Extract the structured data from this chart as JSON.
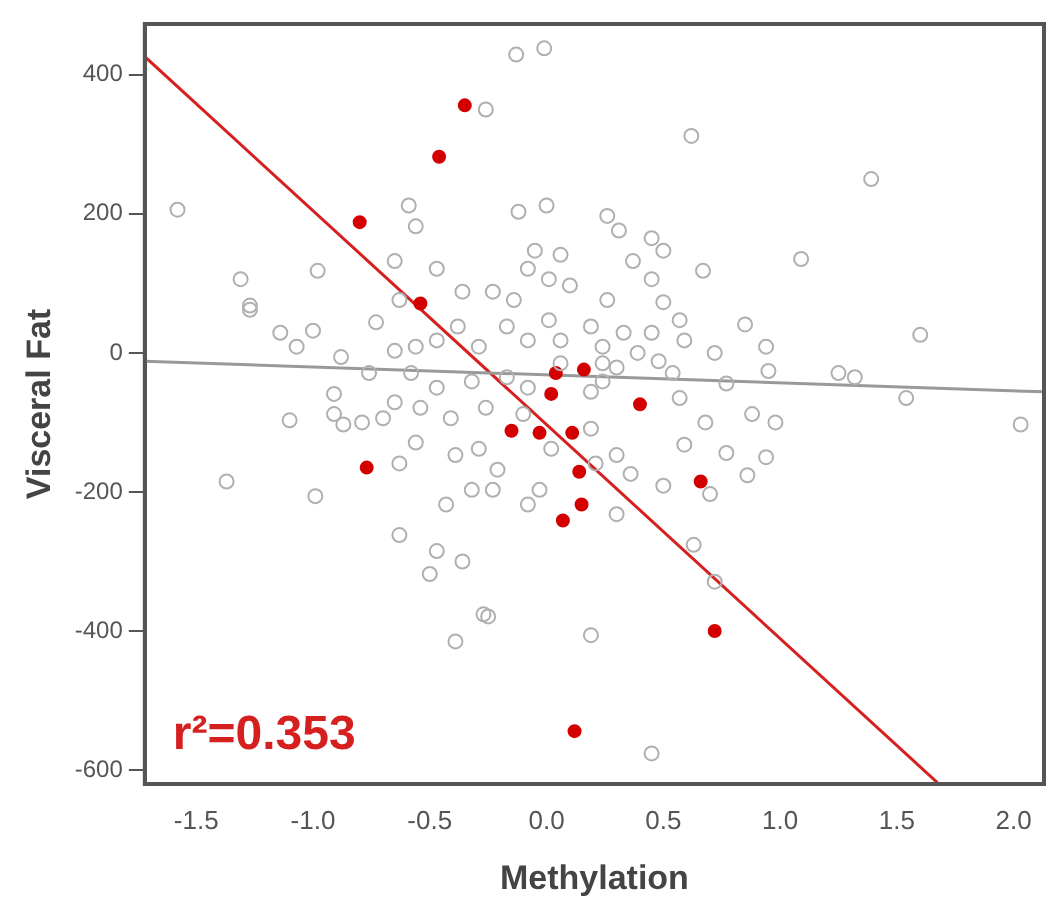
{
  "chart_data": {
    "type": "scatter",
    "xlabel": "Methylation",
    "ylabel": "Visceral Fat",
    "annotations": [
      "r²=0.353"
    ],
    "grid": false,
    "legend": false,
    "xlim": [
      -1.72,
      2.13
    ],
    "ylim": [
      -620,
      473
    ],
    "xticks": [
      {
        "value": -1.5,
        "label": "-1.5"
      },
      {
        "value": -1,
        "label": "-1.0"
      },
      {
        "value": -0.5,
        "label": "-0.5"
      },
      {
        "value": 0,
        "label": "0.0"
      },
      {
        "value": 0.5,
        "label": "0.5"
      },
      {
        "value": 1,
        "label": "1.0"
      },
      {
        "value": 1.5,
        "label": "1.5"
      },
      {
        "value": 2,
        "label": "2.0"
      }
    ],
    "yticks": [
      -600,
      -400,
      -200,
      0,
      200,
      400
    ],
    "series": [
      {
        "color": "#b0b0b0",
        "marker": "circle",
        "x": [
          -0.13,
          -0.01,
          -0.26,
          0.62,
          1.39,
          -1.58,
          -0.59,
          -0.56,
          -0.12,
          0.0,
          0.26,
          0.31,
          0.45,
          0.5,
          1.09,
          0.37,
          0.67,
          0.06,
          -0.05,
          -0.65,
          -0.47,
          -0.98,
          -1.31,
          -1.27,
          -0.08,
          0.01,
          0.1,
          0.26,
          0.45,
          -0.36,
          -0.23,
          -0.14,
          0.5,
          -0.63,
          -1.27,
          -1.14,
          -1.0,
          -1.07,
          -0.88,
          -0.73,
          -0.65,
          -0.56,
          -0.47,
          -0.38,
          -0.29,
          -0.17,
          -0.08,
          0.01,
          0.06,
          0.19,
          0.24,
          0.33,
          0.45,
          0.57,
          0.59,
          0.72,
          0.85,
          0.94,
          0.95,
          1.25,
          1.32,
          1.6,
          1.54,
          2.03,
          0.77,
          0.57,
          0.68,
          0.88,
          0.98,
          0.77,
          0.94,
          0.59,
          0.86,
          0.7,
          0.5,
          0.3,
          0.63,
          0.72,
          0.36,
          0.3,
          0.19,
          0.21,
          -0.08,
          -0.03,
          -0.23,
          -0.32,
          -0.43,
          -0.39,
          -0.29,
          -0.21,
          -0.56,
          -0.63,
          -0.63,
          -0.47,
          -0.36,
          -0.5,
          -0.25,
          -0.41,
          -0.54,
          -0.65,
          -0.7,
          -0.79,
          -0.87,
          -0.91,
          -1.1,
          -0.91,
          -1.37,
          -0.99,
          -0.26,
          -0.1,
          0.02,
          0.19,
          0.3,
          0.54,
          -0.47,
          -0.32,
          -0.17,
          -0.08,
          0.24,
          0.39,
          0.48,
          0.06,
          0.24,
          -0.58,
          -0.76,
          -0.27,
          -0.39,
          0.19,
          0.45
        ],
        "values": [
          429,
          438,
          350,
          312,
          250,
          206,
          212,
          182,
          203,
          212,
          197,
          176,
          165,
          147,
          135,
          132,
          118,
          141,
          147,
          132,
          121,
          118,
          106,
          68,
          121,
          106,
          97,
          76,
          106,
          88,
          88,
          76,
          73,
          76,
          62,
          29,
          32,
          9,
          -6,
          44,
          3,
          9,
          18,
          38,
          9,
          38,
          18,
          47,
          18,
          38,
          9,
          29,
          29,
          47,
          18,
          0,
          41,
          9,
          -26,
          -29,
          -35,
          26,
          -65,
          -103,
          -44,
          -65,
          -100,
          -88,
          -100,
          -144,
          -150,
          -132,
          -176,
          -203,
          -191,
          -232,
          -276,
          -329,
          -174,
          -147,
          -109,
          -159,
          -218,
          -197,
          -197,
          -197,
          -218,
          -147,
          -138,
          -168,
          -129,
          -159,
          -262,
          -285,
          -300,
          -318,
          -379,
          -94,
          -79,
          -71,
          -94,
          -100,
          -103,
          -88,
          -97,
          -59,
          -185,
          -206,
          -79,
          -88,
          -138,
          -56,
          -21,
          -29,
          -50,
          -41,
          -35,
          -50,
          -41,
          0,
          -12,
          -15,
          -15,
          -29,
          -29,
          -376,
          -415,
          -406,
          -576
        ]
      },
      {
        "color": "#d40000",
        "marker": "circle",
        "x": [
          -0.35,
          -0.46,
          -0.8,
          -0.54,
          0.04,
          0.16,
          0.02,
          0.4,
          -0.15,
          -0.03,
          0.11,
          -0.77,
          0.14,
          0.66,
          0.15,
          0.07,
          0.72,
          0.12
        ],
        "values": [
          356,
          282,
          188,
          71,
          -29,
          -24,
          -59,
          -74,
          -112,
          -115,
          -115,
          -165,
          -171,
          -185,
          -218,
          -241,
          -400,
          -544
        ]
      },
      {
        "type": "line",
        "marker": "none",
        "color": "#999999",
        "x": [
          -1.72,
          2.13
        ],
        "values": [
          -12,
          -56
        ]
      },
      {
        "type": "line",
        "marker": "none",
        "color": "#d62020",
        "x": [
          -1.72,
          1.68
        ],
        "values": [
          426,
          -620
        ]
      }
    ]
  }
}
